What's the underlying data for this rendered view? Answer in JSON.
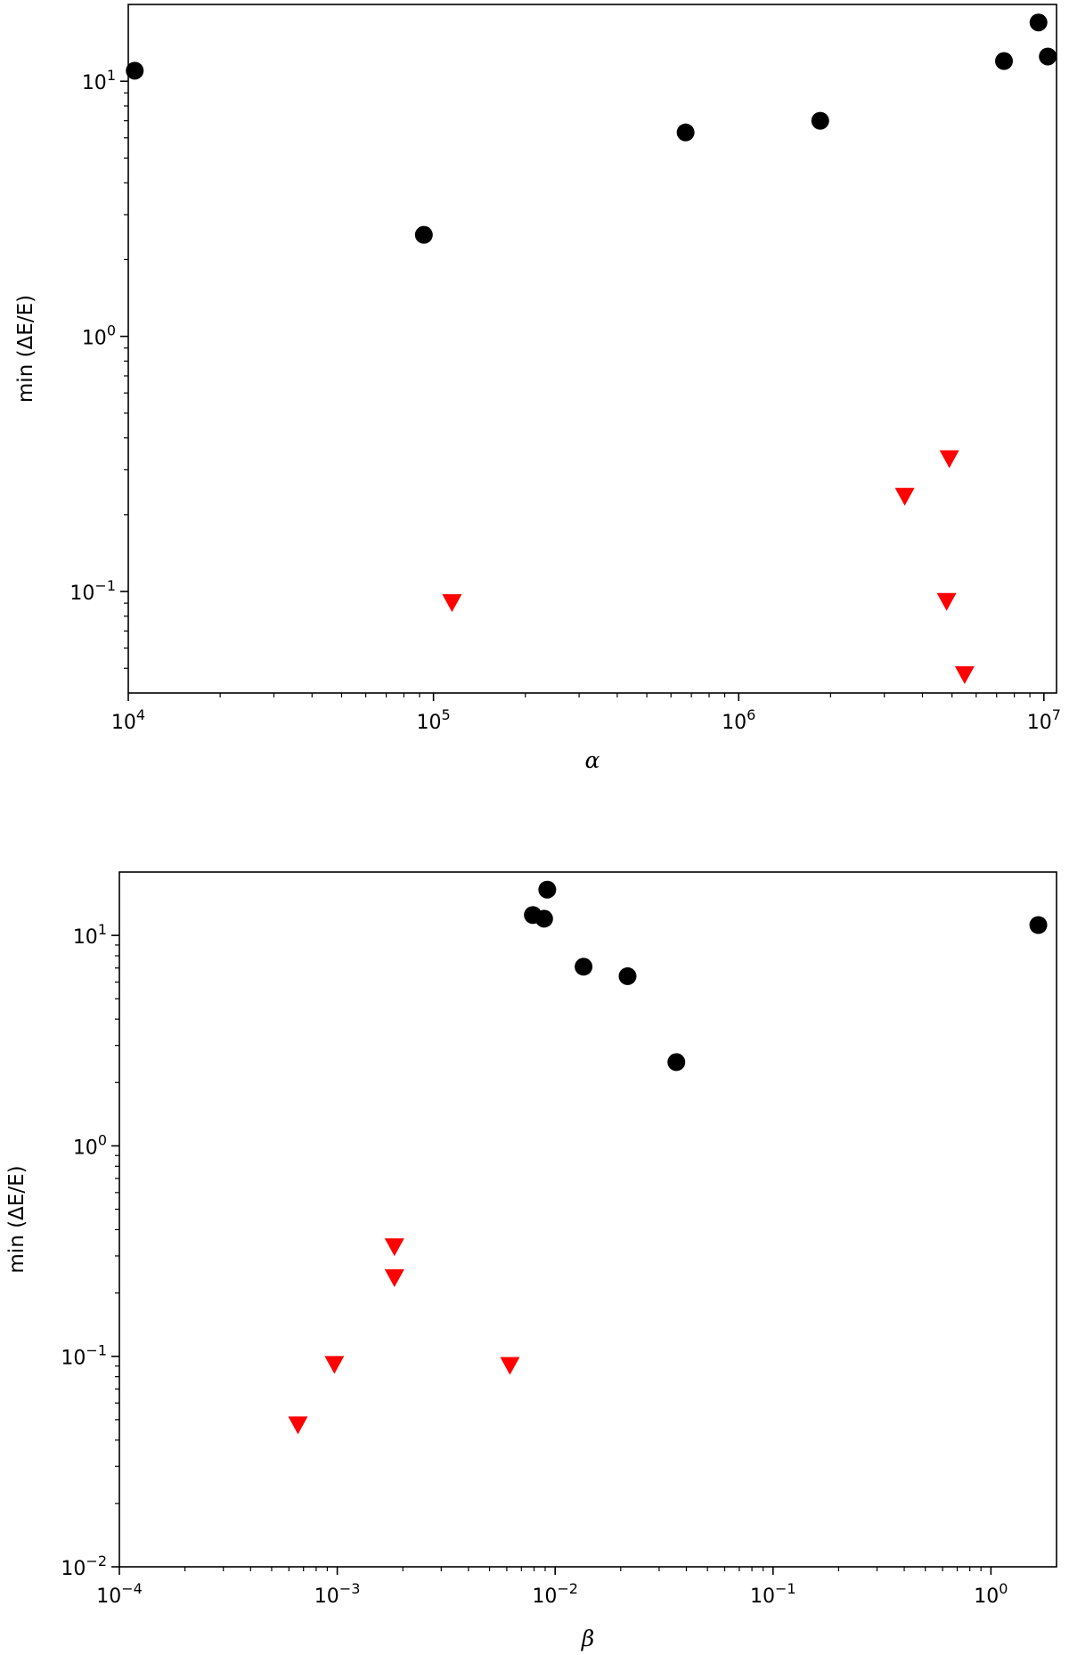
{
  "chart_data": [
    {
      "type": "scatter",
      "title": "",
      "xlabel": "α",
      "ylabel": "min (ΔE/E)",
      "xscale": "log",
      "yscale": "log",
      "xlim": [
        10000,
        11000000
      ],
      "ylim": [
        0.04,
        20
      ],
      "xticks": [
        {
          "value": 10000,
          "base": "10",
          "exp": "4"
        },
        {
          "value": 100000,
          "base": "10",
          "exp": "5"
        },
        {
          "value": 1000000,
          "base": "10",
          "exp": "6"
        },
        {
          "value": 10000000,
          "base": "10",
          "exp": "7"
        }
      ],
      "yticks": [
        {
          "value": 0.1,
          "base": "10",
          "exp": "−1"
        },
        {
          "value": 1,
          "base": "10",
          "exp": "0"
        },
        {
          "value": 10,
          "base": "10",
          "exp": "1"
        }
      ],
      "grid": false,
      "series": [
        {
          "marker": "circle",
          "color": "#000000",
          "points": [
            {
              "x": 10500,
              "y": 11.0
            },
            {
              "x": 93000,
              "y": 2.5
            },
            {
              "x": 670000,
              "y": 6.3
            },
            {
              "x": 1850000,
              "y": 7.0
            },
            {
              "x": 7400000,
              "y": 12.0
            },
            {
              "x": 9600000,
              "y": 17.0
            },
            {
              "x": 10300000,
              "y": 12.5
            }
          ]
        },
        {
          "marker": "triangle-down",
          "color": "#ff0000",
          "points": [
            {
              "x": 115000,
              "y": 0.09
            },
            {
              "x": 3500000,
              "y": 0.235
            },
            {
              "x": 4900000,
              "y": 0.33
            },
            {
              "x": 4800000,
              "y": 0.091
            },
            {
              "x": 5500000,
              "y": 0.047
            }
          ]
        }
      ]
    },
    {
      "type": "scatter",
      "title": "",
      "xlabel": "β",
      "ylabel": "min (ΔE/E)",
      "xscale": "log",
      "yscale": "log",
      "xlim": [
        0.0001,
        2.0
      ],
      "ylim": [
        0.01,
        20
      ],
      "xticks": [
        {
          "value": 0.0001,
          "base": "10",
          "exp": "−4"
        },
        {
          "value": 0.001,
          "base": "10",
          "exp": "−3"
        },
        {
          "value": 0.01,
          "base": "10",
          "exp": "−2"
        },
        {
          "value": 0.1,
          "base": "10",
          "exp": "−1"
        },
        {
          "value": 1,
          "base": "10",
          "exp": "0"
        }
      ],
      "yticks": [
        {
          "value": 0.01,
          "base": "10",
          "exp": "−2"
        },
        {
          "value": 0.1,
          "base": "10",
          "exp": "−1"
        },
        {
          "value": 1,
          "base": "10",
          "exp": "0"
        },
        {
          "value": 10,
          "base": "10",
          "exp": "1"
        }
      ],
      "grid": false,
      "series": [
        {
          "marker": "circle",
          "color": "#000000",
          "points": [
            {
              "x": 0.0079,
              "y": 12.5
            },
            {
              "x": 0.0089,
              "y": 12.0
            },
            {
              "x": 0.0092,
              "y": 16.5
            },
            {
              "x": 0.0135,
              "y": 7.1
            },
            {
              "x": 0.0215,
              "y": 6.4
            },
            {
              "x": 0.036,
              "y": 2.5
            },
            {
              "x": 1.65,
              "y": 11.2
            }
          ]
        },
        {
          "marker": "triangle-down",
          "color": "#ff0000",
          "points": [
            {
              "x": 0.00066,
              "y": 0.047
            },
            {
              "x": 0.00097,
              "y": 0.091
            },
            {
              "x": 0.00183,
              "y": 0.33
            },
            {
              "x": 0.00183,
              "y": 0.235
            },
            {
              "x": 0.0062,
              "y": 0.09
            }
          ]
        }
      ]
    }
  ]
}
